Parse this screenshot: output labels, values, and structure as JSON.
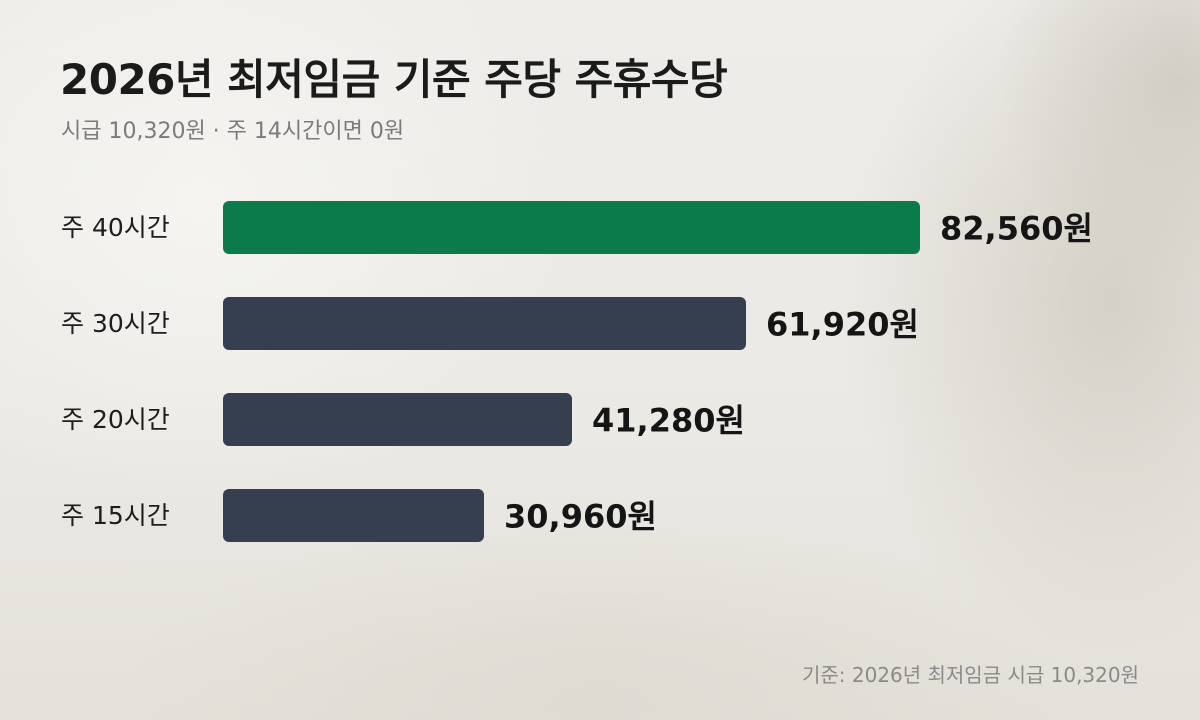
{
  "header": {
    "title": "2026년 최저임금 기준 주당 주휴수당",
    "subtitle": "시급 10,320원 · 주 14시간이면 0원"
  },
  "footer": {
    "source": "기준: 2026년 최저임금 시급 10,320원"
  },
  "colors": {
    "highlight": "#0b7b4b",
    "bar": "#363f50",
    "text": "#1b1b1b",
    "muted": "#7b7b7b"
  },
  "chart_data": {
    "type": "bar",
    "orientation": "horizontal",
    "categories": [
      "주 40시간",
      "주 30시간",
      "주 20시간",
      "주 15시간"
    ],
    "values": [
      82560,
      61920,
      41280,
      30960
    ],
    "value_labels": [
      "82,560원",
      "61,920원",
      "41,280원",
      "30,960원"
    ],
    "highlight_index": 0,
    "xlim": [
      0,
      82560
    ],
    "grid": false,
    "legend": "none"
  }
}
